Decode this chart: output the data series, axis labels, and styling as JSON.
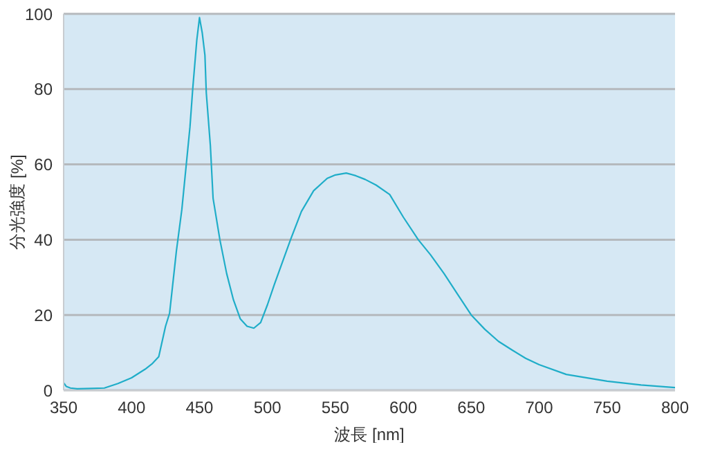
{
  "chart_data": {
    "type": "line",
    "xlabel": "波長 [nm]",
    "ylabel": "分光強度 [%]",
    "xlim": [
      350,
      800
    ],
    "ylim": [
      0,
      100
    ],
    "xticks": [
      350,
      400,
      450,
      500,
      550,
      600,
      650,
      700,
      750,
      800
    ],
    "yticks": [
      0,
      20,
      40,
      60,
      80,
      100
    ],
    "grid": "y",
    "legend": false,
    "marker": "none",
    "series": [
      {
        "color": "#1fadc8",
        "x": [
          350,
          352,
          355,
          360,
          370,
          380,
          390,
          400,
          410,
          415,
          420,
          425,
          428,
          433,
          437,
          440,
          443,
          445,
          448,
          450,
          452,
          454,
          455,
          458,
          460,
          465,
          470,
          475,
          480,
          485,
          490,
          495,
          500,
          505,
          510,
          517,
          525,
          534,
          544,
          550,
          558,
          565,
          572,
          580,
          590,
          600,
          611,
          620,
          630,
          640,
          650,
          660,
          670,
          680,
          690,
          700,
          720,
          750,
          775,
          800
        ],
        "values": [
          2,
          1,
          0.6,
          0.4,
          0.5,
          0.6,
          1.8,
          3.3,
          5.6,
          7,
          8.9,
          17,
          20.5,
          37,
          48,
          59,
          70,
          80,
          93,
          99,
          95,
          89,
          79,
          65,
          51,
          40,
          31,
          24,
          19,
          17,
          16.5,
          18,
          22.7,
          28,
          33,
          40,
          47.5,
          53,
          56.3,
          57.2,
          57.7,
          57,
          56,
          54.5,
          52,
          46,
          40,
          36,
          31,
          25.5,
          20,
          16.2,
          13,
          10.7,
          8.5,
          6.8,
          4.2,
          2.4,
          1.4,
          0.7
        ]
      }
    ]
  }
}
